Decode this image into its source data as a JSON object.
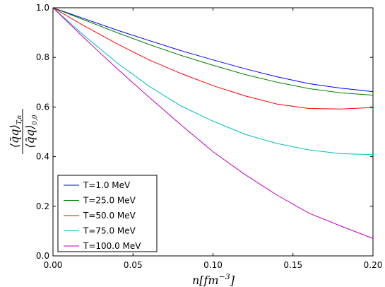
{
  "chart_data": {
    "type": "line",
    "title": "",
    "xlabel": "n[fm^-3]",
    "ylabel": "<q̄q>_{T,n} / <q̄q>_{0,0}",
    "xlim": [
      0.0,
      0.2
    ],
    "ylim": [
      0.0,
      1.0
    ],
    "x_ticks": [
      "0.00",
      "0.05",
      "0.10",
      "0.15",
      "0.20"
    ],
    "y_ticks": [
      "0.0",
      "0.2",
      "0.4",
      "0.6",
      "0.8",
      "1.0"
    ],
    "grid": false,
    "legend_position": "lower-left",
    "x": [
      0.0,
      0.02,
      0.04,
      0.06,
      0.08,
      0.1,
      0.12,
      0.14,
      0.16,
      0.18,
      0.2
    ],
    "series": [
      {
        "name": "T=1.0 MeV",
        "color": "#0000ff",
        "values": [
          1.0,
          0.955,
          0.91,
          0.868,
          0.827,
          0.79,
          0.754,
          0.722,
          0.694,
          0.676,
          0.662
        ]
      },
      {
        "name": "T=25.0 MeV",
        "color": "#008000",
        "values": [
          1.0,
          0.95,
          0.9,
          0.852,
          0.808,
          0.768,
          0.731,
          0.7,
          0.674,
          0.657,
          0.648
        ]
      },
      {
        "name": "T=50.0 MeV",
        "color": "#ff0000",
        "values": [
          1.0,
          0.925,
          0.855,
          0.79,
          0.735,
          0.686,
          0.645,
          0.612,
          0.594,
          0.592,
          0.598
        ]
      },
      {
        "name": "T=75.0 MeV",
        "color": "#00bfbf",
        "values": [
          1.0,
          0.885,
          0.778,
          0.684,
          0.604,
          0.543,
          0.49,
          0.453,
          0.427,
          0.412,
          0.408
        ]
      },
      {
        "name": "T=100.0 MeV",
        "color": "#bf00bf",
        "values": [
          1.0,
          0.875,
          0.755,
          0.64,
          0.528,
          0.42,
          0.328,
          0.245,
          0.172,
          0.12,
          0.07
        ]
      }
    ]
  }
}
